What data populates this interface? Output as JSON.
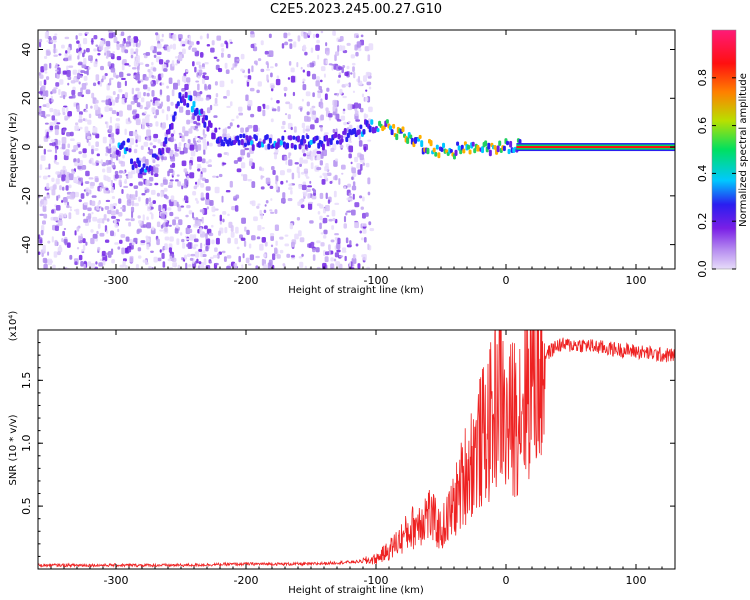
{
  "title": "C2E5.2023.245.00.27.G10",
  "chart_data": [
    {
      "type": "heatmap",
      "title": "C2E5.2023.245.00.27.G10",
      "xlabel": "Height of straight line (km)",
      "ylabel": "Frequency (Hz)",
      "xlim": [
        -360,
        130
      ],
      "ylim": [
        -50,
        48
      ],
      "x_ticks": [
        -300,
        -200,
        -100,
        0,
        100
      ],
      "y_ticks": [
        -40,
        -20,
        0,
        20,
        40
      ],
      "colorbar": {
        "label": "Normalized spectral amplitude",
        "range": [
          0,
          1
        ],
        "ticks": [
          "0.0",
          "0.2",
          "0.4",
          "0.6",
          "0.8"
        ],
        "colormap": [
          "#e7dcf9",
          "#7a1fe6",
          "#2a1ef0",
          "#00c8ff",
          "#00e060",
          "#b8e000",
          "#ff8000",
          "#ff1010",
          "#ff1a78"
        ]
      },
      "tone_track": [
        {
          "x": -290,
          "y": -5
        },
        {
          "x": -280,
          "y": -10
        },
        {
          "x": -270,
          "y": -5
        },
        {
          "x": -262,
          "y": 5
        },
        {
          "x": -255,
          "y": 15
        },
        {
          "x": -250,
          "y": 22
        },
        {
          "x": -220,
          "y": 2
        },
        {
          "x": -180,
          "y": 2
        },
        {
          "x": -140,
          "y": 2
        },
        {
          "x": -110,
          "y": 8
        },
        {
          "x": -90,
          "y": 8
        },
        {
          "x": -70,
          "y": 2
        },
        {
          "x": -50,
          "y": -2
        },
        {
          "x": -30,
          "y": -1
        },
        {
          "x": 0,
          "y": 0
        },
        {
          "x": 130,
          "y": 0
        }
      ]
    },
    {
      "type": "line",
      "xlabel": "Height of straight line (km)",
      "ylabel": "SNR (10 * v/v)",
      "y_multiplier": "(x10⁴)",
      "xlim": [
        -360,
        130
      ],
      "ylim": [
        0,
        1.9
      ],
      "x_ticks": [
        -300,
        -200,
        -100,
        0,
        100
      ],
      "y_ticks": [
        "0.5",
        "1.0",
        "1.5"
      ],
      "color": "#ee2222",
      "series": [
        {
          "x": [
            -360,
            -300,
            -250,
            -200,
            -150,
            -130,
            -110,
            -100,
            -90,
            -80,
            -70,
            -60,
            -50,
            -40,
            -30,
            -20,
            -10,
            -5,
            0,
            10,
            20,
            30,
            40,
            60,
            80,
            100,
            120,
            130
          ],
          "y": [
            0.03,
            0.03,
            0.03,
            0.04,
            0.04,
            0.05,
            0.06,
            0.08,
            0.15,
            0.25,
            0.35,
            0.45,
            0.3,
            0.5,
            0.8,
            1.0,
            1.2,
            1.5,
            1.1,
            1.3,
            1.55,
            1.7,
            1.78,
            1.78,
            1.75,
            1.73,
            1.7,
            1.7
          ]
        }
      ]
    }
  ]
}
